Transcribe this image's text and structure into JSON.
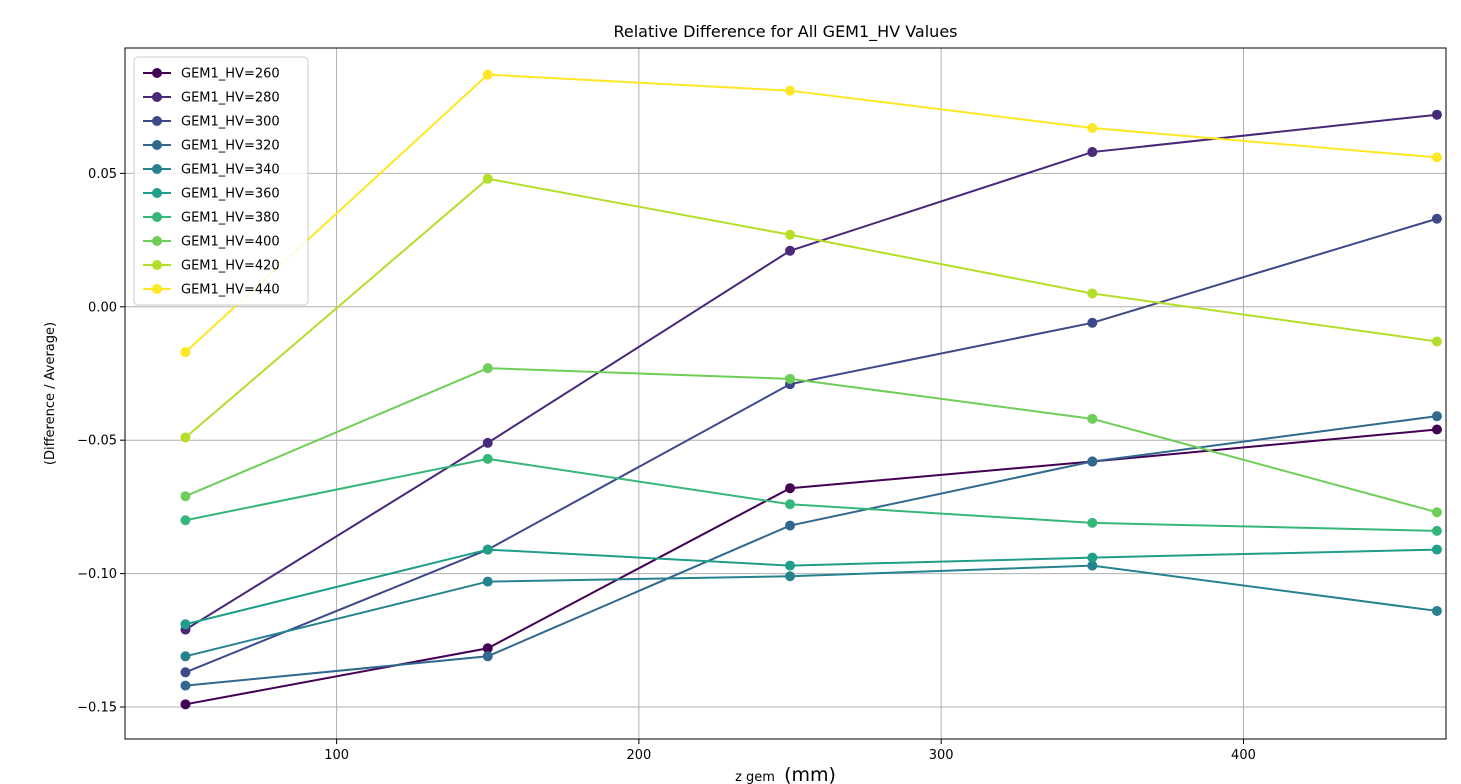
{
  "chart_data": {
    "type": "line",
    "title": "Relative Difference for All GEM1_HV Values",
    "xlabel_main": "z gem",
    "xlabel_unit": "(mm)",
    "ylabel": "(Difference / Average)",
    "xlim": [
      30,
      467
    ],
    "ylim": [
      -0.162,
      0.097
    ],
    "xticks": [
      100,
      200,
      300,
      400
    ],
    "xtick_labels": [
      "100",
      "200",
      "300",
      "400"
    ],
    "yticks": [
      -0.15,
      -0.1,
      -0.05,
      0.0,
      0.05
    ],
    "ytick_labels": [
      "−0.15",
      "−0.10",
      "−0.05",
      "0.00",
      "0.05"
    ],
    "grid": true,
    "legend_position": "upper-left",
    "x": [
      50,
      150,
      250,
      350,
      464
    ],
    "series": [
      {
        "name": "GEM1_HV=260",
        "color": "#440154",
        "values": [
          -0.149,
          -0.128,
          -0.068,
          -0.058,
          -0.046
        ]
      },
      {
        "name": "GEM1_HV=280",
        "color": "#482878",
        "values": [
          -0.121,
          -0.051,
          0.021,
          0.058,
          0.072
        ]
      },
      {
        "name": "GEM1_HV=300",
        "color": "#3e4989",
        "values": [
          -0.137,
          -0.091,
          -0.029,
          -0.006,
          0.033
        ]
      },
      {
        "name": "GEM1_HV=320",
        "color": "#31688e",
        "values": [
          -0.142,
          -0.131,
          -0.082,
          -0.058,
          -0.041
        ]
      },
      {
        "name": "GEM1_HV=340",
        "color": "#26828e",
        "values": [
          -0.131,
          -0.103,
          -0.101,
          -0.097,
          -0.114
        ]
      },
      {
        "name": "GEM1_HV=360",
        "color": "#1f9e89",
        "values": [
          -0.119,
          -0.091,
          -0.097,
          -0.094,
          -0.091
        ]
      },
      {
        "name": "GEM1_HV=380",
        "color": "#35b779",
        "values": [
          -0.08,
          -0.057,
          -0.074,
          -0.081,
          -0.084
        ]
      },
      {
        "name": "GEM1_HV=400",
        "color": "#6ece58",
        "values": [
          -0.071,
          -0.023,
          -0.027,
          -0.042,
          -0.077
        ]
      },
      {
        "name": "GEM1_HV=420",
        "color": "#b5de2b",
        "values": [
          -0.049,
          0.048,
          0.027,
          0.005,
          -0.013
        ]
      },
      {
        "name": "GEM1_HV=440",
        "color": "#fde725",
        "values": [
          -0.017,
          0.087,
          0.081,
          0.067,
          0.056
        ]
      }
    ]
  }
}
